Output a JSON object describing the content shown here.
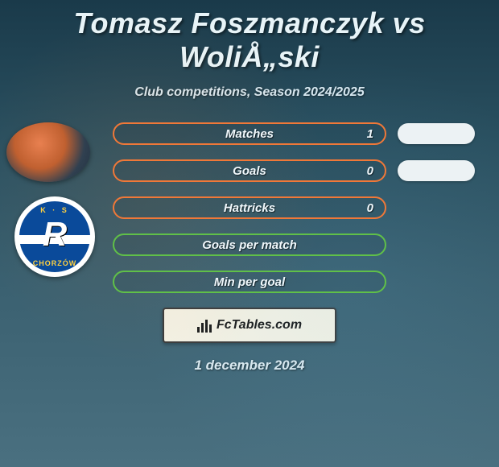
{
  "header": {
    "title": "Tomasz Foszmanczyk vs WoliÅ„ski",
    "subtitle": "Club competitions, Season 2024/2025"
  },
  "avatars": {
    "player_bg": "radial-gradient(circle at 40% 35%, #e88050 0%, #c06030 40%, #304050 70%, #203040 100%)",
    "club": {
      "top_text": "K · S",
      "letter": "R",
      "bottom_text": "CHORZÓW",
      "primary": "#0a4a9a",
      "accent": "#ffd040"
    }
  },
  "stats": [
    {
      "label": "Matches",
      "value": "1",
      "border_color": "#f07838",
      "show_side_pill": true
    },
    {
      "label": "Goals",
      "value": "0",
      "border_color": "#f07838",
      "show_side_pill": true
    },
    {
      "label": "Hattricks",
      "value": "0",
      "border_color": "#f07838",
      "show_side_pill": false
    },
    {
      "label": "Goals per match",
      "value": "",
      "border_color": "#60c048",
      "show_side_pill": false
    },
    {
      "label": "Min per goal",
      "value": "",
      "border_color": "#60c048",
      "show_side_pill": false
    }
  ],
  "footer": {
    "brand": "FcTables.com",
    "date": "1 december 2024"
  },
  "colors": {
    "pill_text": "#f0f8fc",
    "side_pill_bg": "#ecf2f4",
    "badge_bg": "#f5f2e4",
    "badge_border": "#3a3a3a"
  }
}
